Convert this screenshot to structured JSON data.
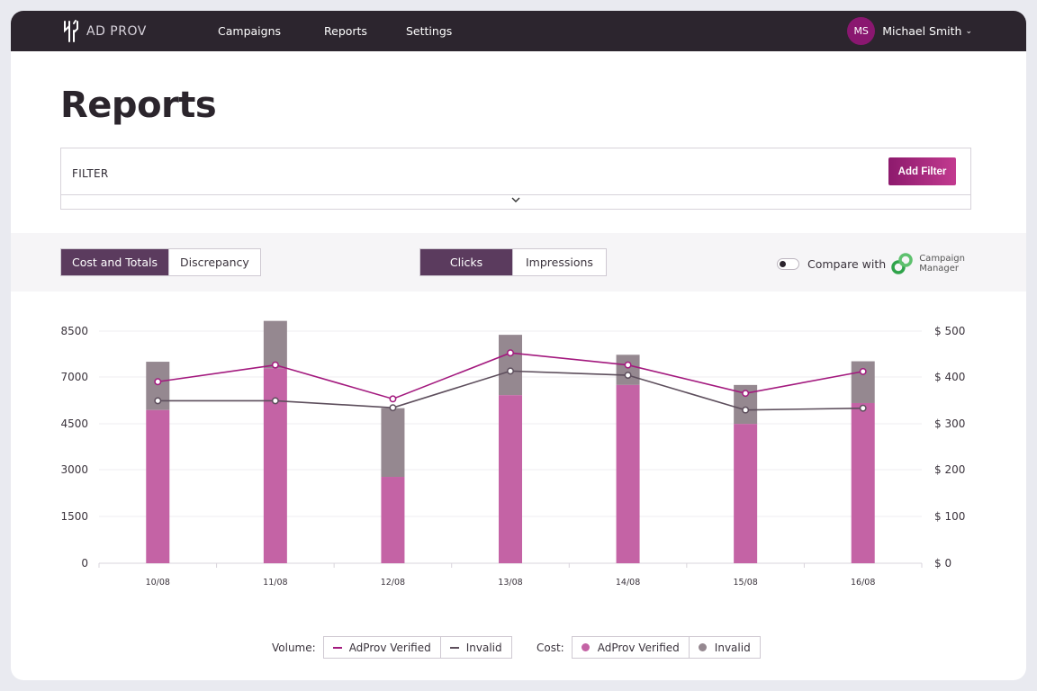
{
  "app": {
    "logo_text": "AD PROV"
  },
  "nav": {
    "items": [
      "Campaigns",
      "Reports",
      "Settings"
    ]
  },
  "user": {
    "initials": "MS",
    "name": "Michael Smith"
  },
  "page": {
    "title": "Reports"
  },
  "filter": {
    "label": "FILTER",
    "add_button": "Add Filter"
  },
  "controls": {
    "view_tabs": [
      "Cost and Totals",
      "Discrepancy"
    ],
    "metric_tabs": [
      "Clicks",
      "Impressions"
    ],
    "compare_label": "Compare with",
    "campaign_manager": [
      "Campaign",
      "Manager"
    ]
  },
  "legend": {
    "volume_label": "Volume:",
    "cost_label": "Cost:",
    "verified": "AdProv Verified",
    "invalid": "Invalid"
  },
  "colors": {
    "nav_bg": "#2c252e",
    "accent": "#8a1770",
    "active_tab": "#5b3b5e",
    "verified_bar": "#c463a5",
    "invalid_bar": "#958890",
    "verified_line": "#a3197e",
    "invalid_line": "#5d4e5c"
  },
  "chart_data": {
    "type": "bar",
    "categories": [
      "10/08",
      "11/08",
      "12/08",
      "13/08",
      "14/08",
      "15/08",
      "16/08"
    ],
    "y_left": {
      "ticks": [
        0,
        1500,
        3000,
        4500,
        7000,
        8500
      ],
      "range": [
        0,
        8500
      ]
    },
    "y_right": {
      "ticks": [
        "$ 0",
        "$ 100",
        "$ 200",
        "$ 300",
        "$ 400",
        "$ 500"
      ],
      "range": [
        0,
        500
      ]
    },
    "bar_series": [
      {
        "name": "AdProv Verified",
        "values": [
          330,
          420,
          186,
          362,
          384,
          300,
          345
        ]
      },
      {
        "name": "Invalid",
        "values": [
          104,
          102,
          148,
          130,
          65,
          84,
          90
        ]
      }
    ],
    "line_series": [
      {
        "name": "AdProv Verified",
        "values": [
          391,
          427,
          354,
          453,
          427,
          366,
          413
        ]
      },
      {
        "name": "Invalid",
        "values": [
          350,
          350,
          335,
          414,
          405,
          330,
          334
        ]
      }
    ]
  }
}
